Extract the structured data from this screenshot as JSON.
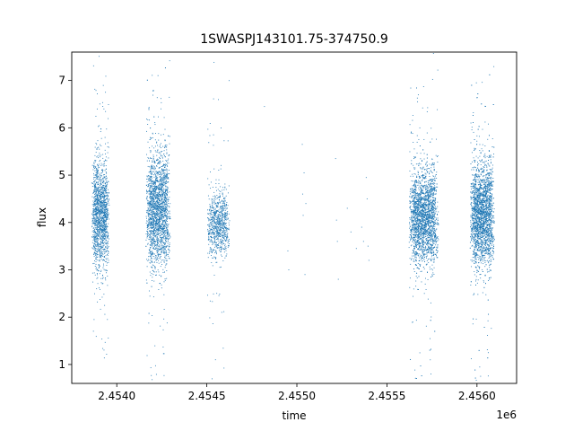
{
  "chart_data": {
    "type": "scatter",
    "title": "1SWASPJ143101.75-374750.9",
    "xlabel": "time",
    "ylabel": "flux",
    "x_offset_label": "1e6",
    "xlim": [
      2453750,
      2456220
    ],
    "ylim": [
      0.6,
      7.6
    ],
    "x_ticks": [
      2454000,
      2454500,
      2455000,
      2455500,
      2456000
    ],
    "x_tick_labels": [
      "2.4540",
      "2.4545",
      "2.4550",
      "2.4555",
      "2.4560"
    ],
    "y_ticks": [
      1,
      2,
      3,
      4,
      5,
      6,
      7
    ],
    "y_tick_labels": [
      "1",
      "2",
      "3",
      "4",
      "5",
      "6",
      "7"
    ],
    "grid": false,
    "marker_color": "#1f77b4",
    "point_groups": [
      {
        "x_start": 2453860,
        "x_end": 2453960,
        "count": 1600,
        "center": 4.15,
        "spread": 0.55
      },
      {
        "x_start": 2454160,
        "x_end": 2454300,
        "count": 2200,
        "center": 4.25,
        "spread": 0.6
      },
      {
        "x_start": 2454500,
        "x_end": 2454630,
        "count": 850,
        "center": 3.95,
        "spread": 0.35
      },
      {
        "x_start": 2455620,
        "x_end": 2455790,
        "count": 2700,
        "center": 4.1,
        "spread": 0.5
      },
      {
        "x_start": 2455960,
        "x_end": 2456100,
        "count": 2700,
        "center": 4.15,
        "spread": 0.55
      }
    ],
    "sparse_points": [
      [
        2454820,
        6.45
      ],
      [
        2454950,
        3.4
      ],
      [
        2454955,
        3.0
      ],
      [
        2455030,
        5.65
      ],
      [
        2455032,
        4.6
      ],
      [
        2455035,
        4.15
      ],
      [
        2455040,
        5.05
      ],
      [
        2455045,
        2.9
      ],
      [
        2455050,
        4.4
      ],
      [
        2455215,
        5.35
      ],
      [
        2455220,
        4.05
      ],
      [
        2455225,
        3.6
      ],
      [
        2455230,
        2.8
      ],
      [
        2455280,
        4.3
      ],
      [
        2455300,
        3.8
      ],
      [
        2455330,
        3.45
      ],
      [
        2455360,
        3.9
      ],
      [
        2455370,
        3.6
      ],
      [
        2455385,
        4.95
      ],
      [
        2455390,
        4.5
      ],
      [
        2455395,
        3.5
      ],
      [
        2455400,
        3.2
      ]
    ]
  }
}
